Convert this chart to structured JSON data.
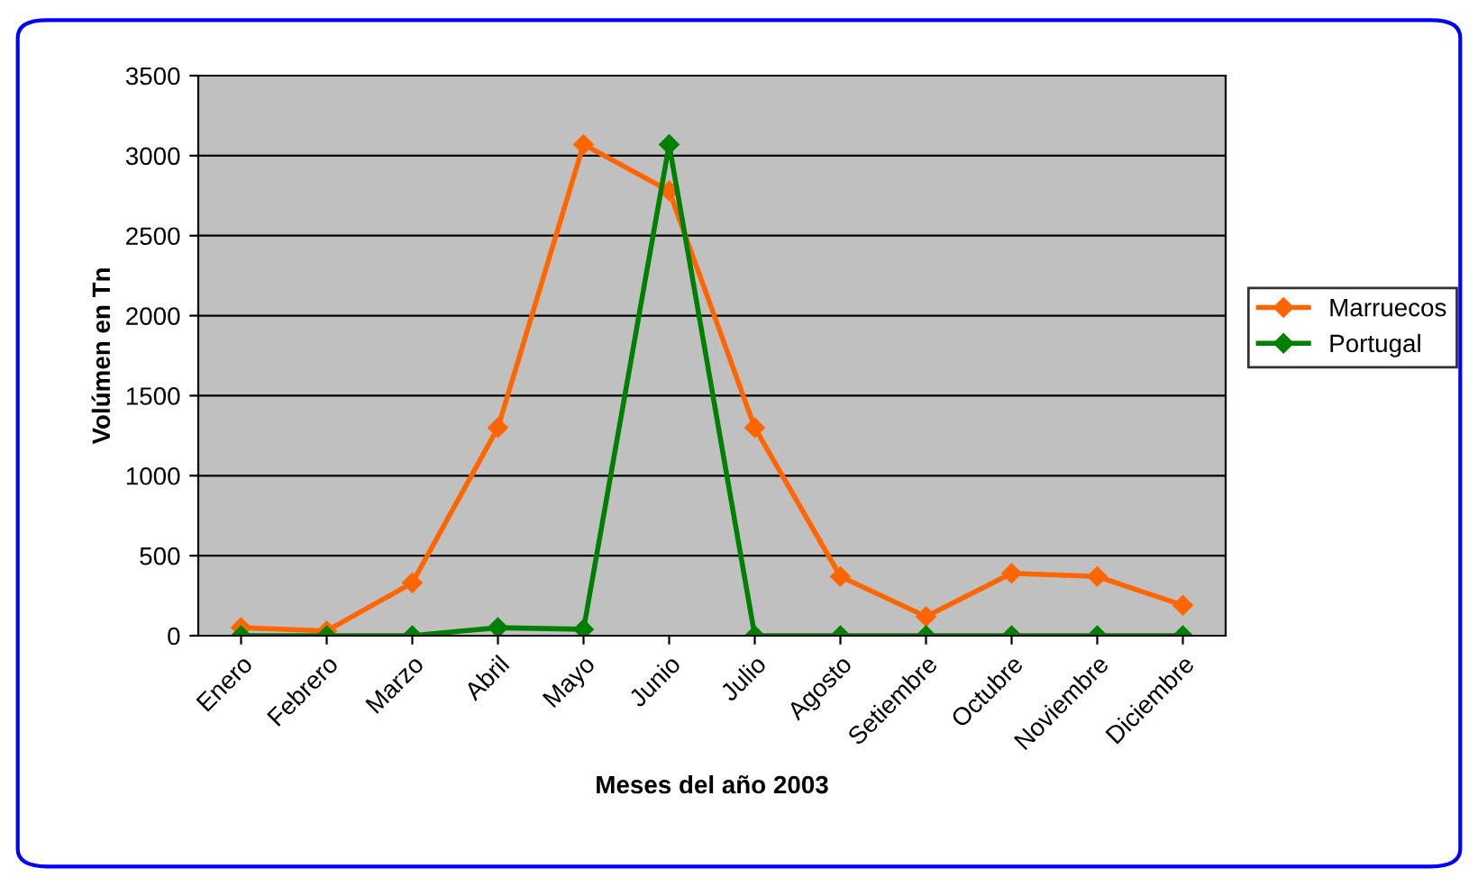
{
  "chart_data": {
    "type": "line",
    "xlabel": "Meses del año 2003",
    "ylabel": "Volúmen en Tn",
    "categories": [
      "Enero",
      "Febrero",
      "Marzo",
      "Abril",
      "Mayo",
      "Junio",
      "Julio",
      "Agosto",
      "Setiembre",
      "Octubre",
      "Noviembre",
      "Diciembre"
    ],
    "series": [
      {
        "name": "Marruecos",
        "color": "#ff6600",
        "values": [
          50,
          30,
          330,
          1300,
          3070,
          2780,
          1300,
          370,
          120,
          390,
          370,
          190
        ]
      },
      {
        "name": "Portugal",
        "color": "#008000",
        "values": [
          0,
          0,
          0,
          50,
          40,
          3070,
          0,
          0,
          0,
          0,
          0,
          0
        ]
      }
    ],
    "ylim": [
      0,
      3500
    ],
    "yticks": [
      0,
      500,
      1000,
      1500,
      2000,
      2500,
      3000,
      3500
    ],
    "grid": "y",
    "legend": "right",
    "marker": "diamond",
    "line_style": "solid"
  }
}
